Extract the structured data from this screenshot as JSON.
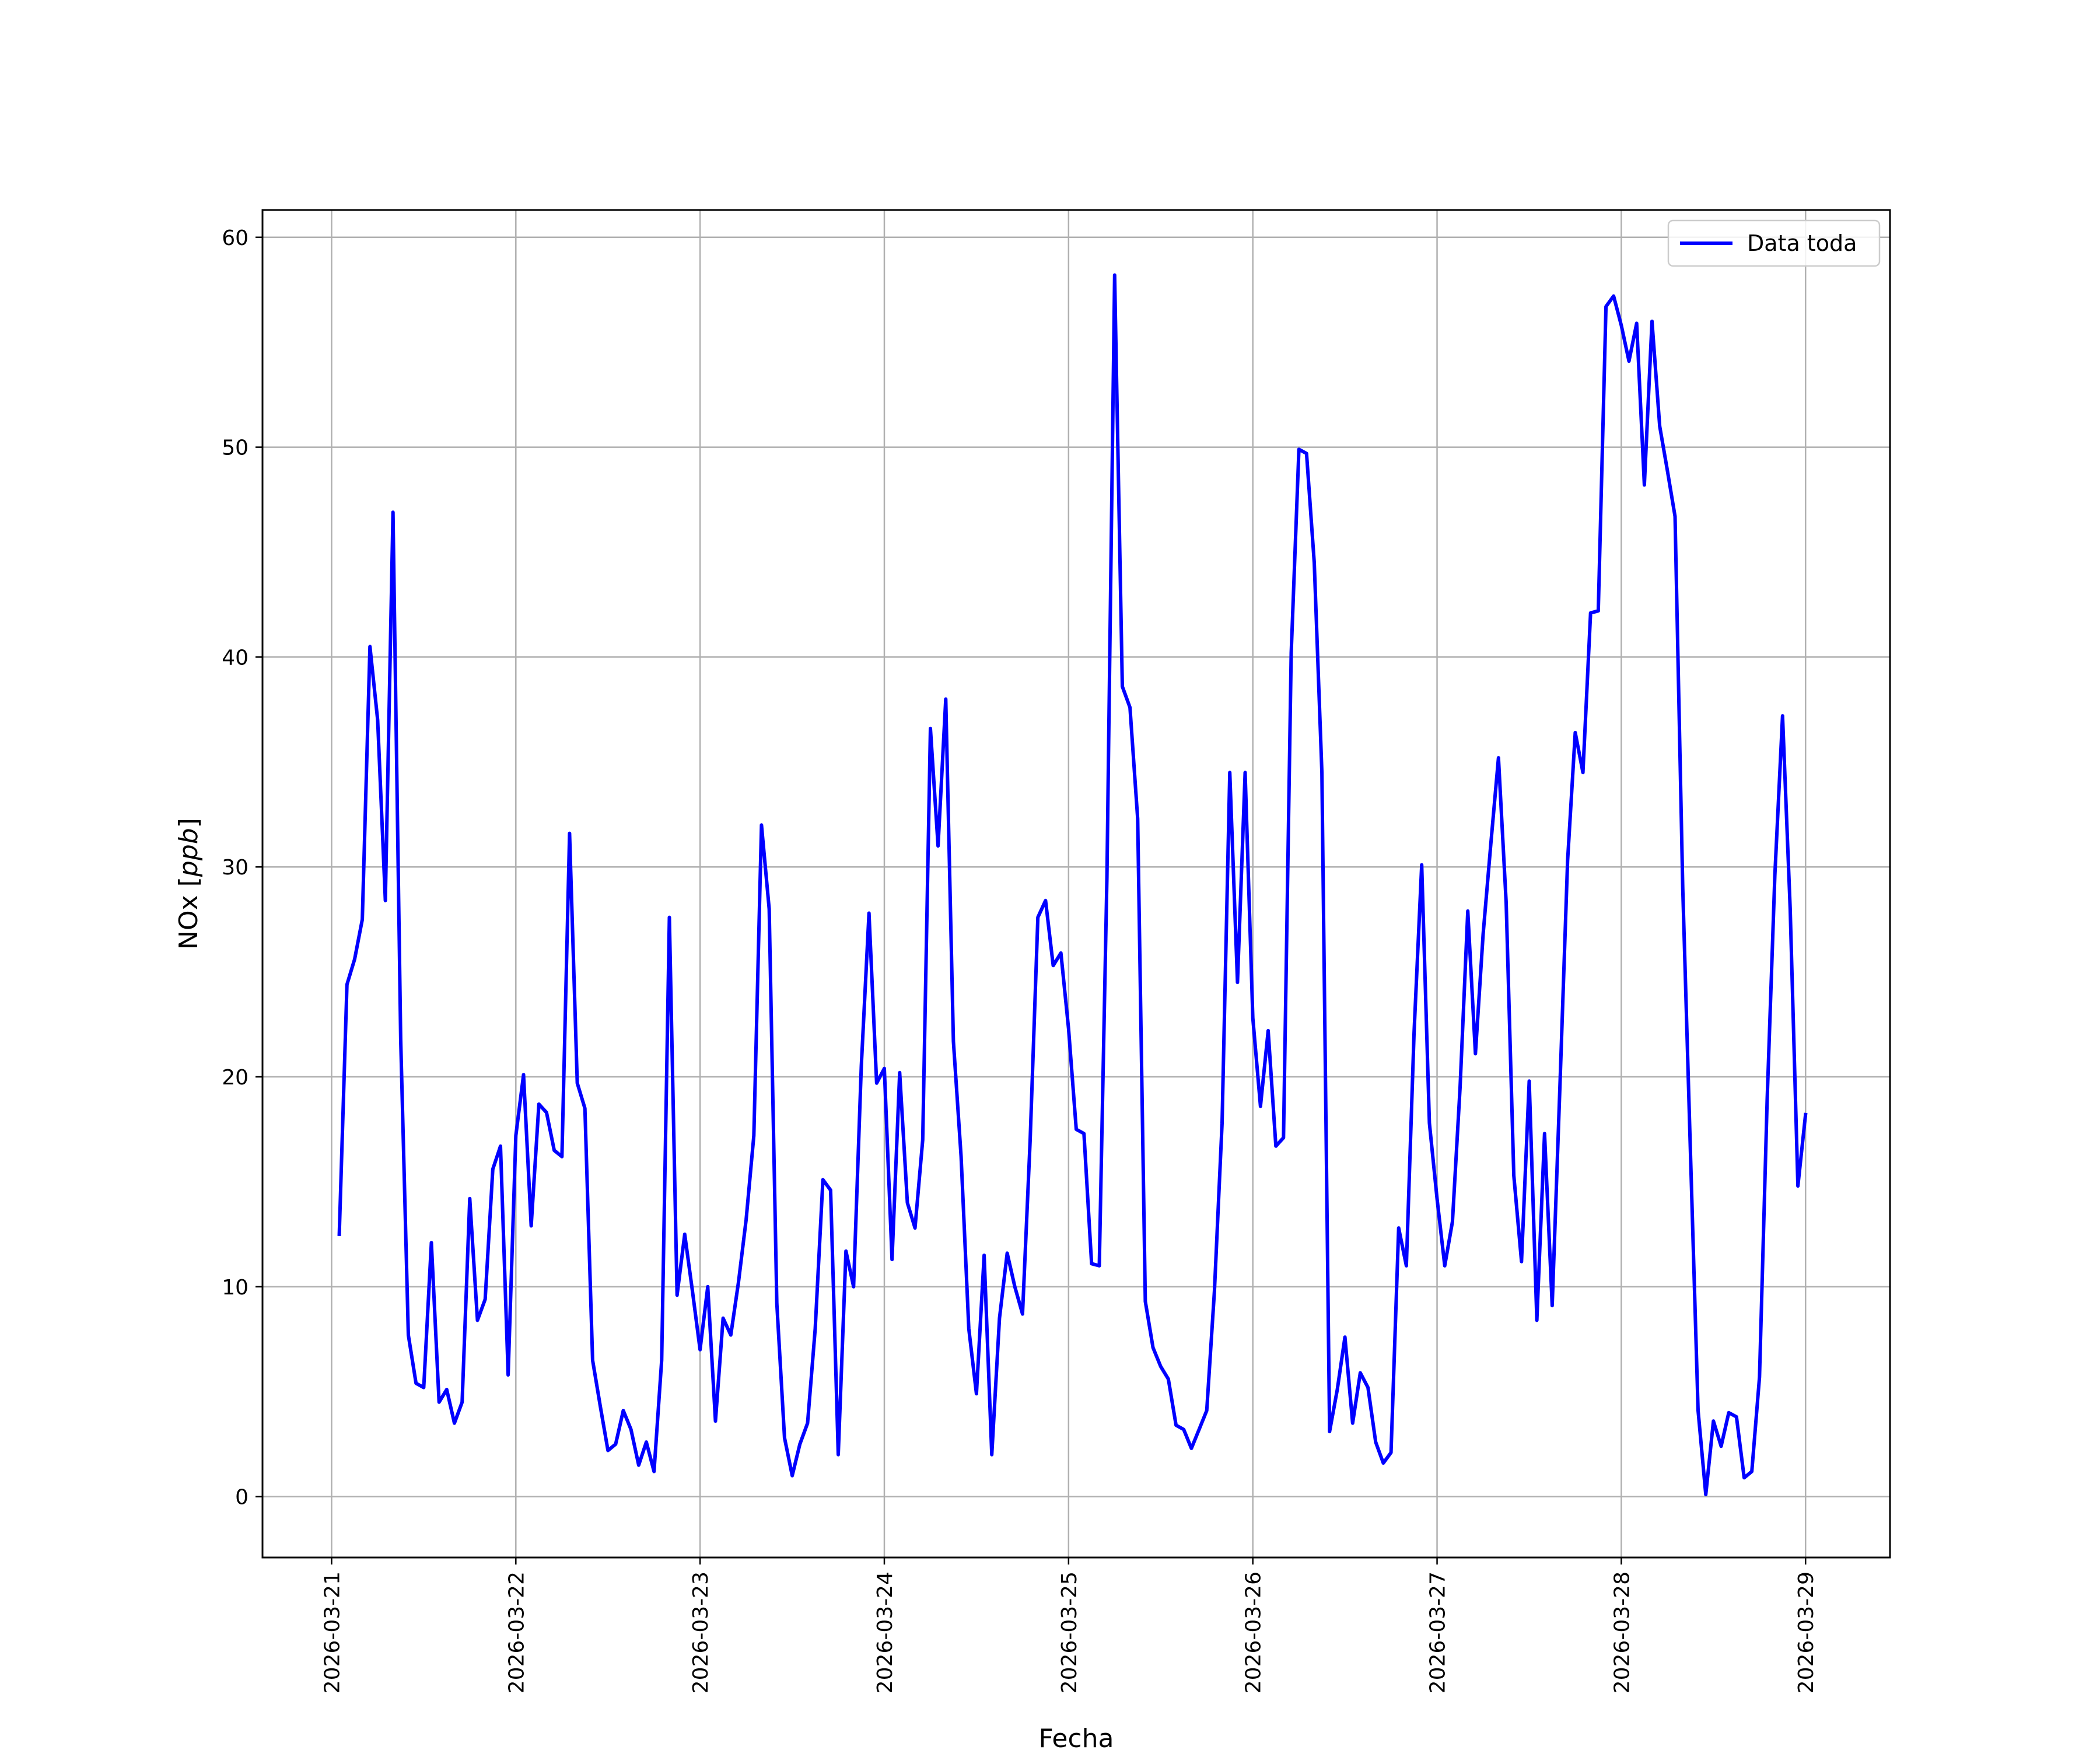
{
  "chart_data": {
    "type": "line",
    "xlabel": "Fecha",
    "ylabel_prefix": "NOx [",
    "ylabel_unit": "ppb",
    "ylabel_suffix": "]",
    "ylim": [
      -2.9,
      61.3
    ],
    "xlim": [
      "2026-03-20 15:00",
      "2026-03-29 11:00"
    ],
    "x_ticks": [
      "2026-03-21",
      "2026-03-22",
      "2026-03-23",
      "2026-03-24",
      "2026-03-25",
      "2026-03-26",
      "2026-03-27",
      "2026-03-28",
      "2026-03-29"
    ],
    "y_ticks": [
      0,
      10,
      20,
      30,
      40,
      50,
      60
    ],
    "grid": true,
    "legend_position": "top-right",
    "series": [
      {
        "name": "Data toda",
        "color": "#0000ff",
        "x": [
          "2026-03-21 01:00",
          "2026-03-21 02:00",
          "2026-03-21 03:00",
          "2026-03-21 04:00",
          "2026-03-21 05:00",
          "2026-03-21 06:00",
          "2026-03-21 07:00",
          "2026-03-21 08:00",
          "2026-03-21 09:00",
          "2026-03-21 10:00",
          "2026-03-21 11:00",
          "2026-03-21 12:00",
          "2026-03-21 13:00",
          "2026-03-21 14:00",
          "2026-03-21 15:00",
          "2026-03-21 16:00",
          "2026-03-21 17:00",
          "2026-03-21 18:00",
          "2026-03-21 19:00",
          "2026-03-21 20:00",
          "2026-03-21 21:00",
          "2026-03-21 22:00",
          "2026-03-21 23:00",
          "2026-03-22 00:00",
          "2026-03-22 01:00",
          "2026-03-22 02:00",
          "2026-03-22 03:00",
          "2026-03-22 04:00",
          "2026-03-22 05:00",
          "2026-03-22 06:00",
          "2026-03-22 07:00",
          "2026-03-22 08:00",
          "2026-03-22 09:00",
          "2026-03-22 10:00",
          "2026-03-22 11:00",
          "2026-03-22 12:00",
          "2026-03-22 13:00",
          "2026-03-22 14:00",
          "2026-03-22 15:00",
          "2026-03-22 16:00",
          "2026-03-22 17:00",
          "2026-03-22 18:00",
          "2026-03-22 19:00",
          "2026-03-22 20:00",
          "2026-03-22 21:00",
          "2026-03-22 22:00",
          "2026-03-22 23:00",
          "2026-03-23 00:00",
          "2026-03-23 01:00",
          "2026-03-23 02:00",
          "2026-03-23 03:00",
          "2026-03-23 04:00",
          "2026-03-23 05:00",
          "2026-03-23 06:00",
          "2026-03-23 07:00",
          "2026-03-23 08:00",
          "2026-03-23 09:00",
          "2026-03-23 10:00",
          "2026-03-23 11:00",
          "2026-03-23 12:00",
          "2026-03-23 13:00",
          "2026-03-23 14:00",
          "2026-03-23 15:00",
          "2026-03-23 16:00",
          "2026-03-23 17:00",
          "2026-03-23 18:00",
          "2026-03-23 19:00",
          "2026-03-23 20:00",
          "2026-03-23 21:00",
          "2026-03-23 22:00",
          "2026-03-23 23:00",
          "2026-03-24 00:00",
          "2026-03-24 01:00",
          "2026-03-24 02:00",
          "2026-03-24 03:00",
          "2026-03-24 04:00",
          "2026-03-24 05:00",
          "2026-03-24 06:00",
          "2026-03-24 07:00",
          "2026-03-24 08:00",
          "2026-03-24 09:00",
          "2026-03-24 10:00",
          "2026-03-24 11:00",
          "2026-03-24 12:00",
          "2026-03-24 13:00",
          "2026-03-24 14:00",
          "2026-03-24 15:00",
          "2026-03-24 16:00",
          "2026-03-24 17:00",
          "2026-03-24 18:00",
          "2026-03-24 19:00",
          "2026-03-24 20:00",
          "2026-03-24 21:00",
          "2026-03-24 22:00",
          "2026-03-24 23:00",
          "2026-03-25 00:00",
          "2026-03-25 01:00",
          "2026-03-25 02:00",
          "2026-03-25 03:00",
          "2026-03-25 04:00",
          "2026-03-25 05:00",
          "2026-03-25 06:00",
          "2026-03-25 07:00",
          "2026-03-25 08:00",
          "2026-03-25 09:00",
          "2026-03-25 10:00",
          "2026-03-25 11:00",
          "2026-03-25 12:00",
          "2026-03-25 13:00",
          "2026-03-25 14:00",
          "2026-03-25 15:00",
          "2026-03-25 16:00",
          "2026-03-25 17:00",
          "2026-03-25 18:00",
          "2026-03-25 19:00",
          "2026-03-25 20:00",
          "2026-03-25 21:00",
          "2026-03-25 22:00",
          "2026-03-25 23:00",
          "2026-03-26 00:00",
          "2026-03-26 01:00",
          "2026-03-26 02:00",
          "2026-03-26 03:00",
          "2026-03-26 04:00",
          "2026-03-26 05:00",
          "2026-03-26 06:00",
          "2026-03-26 07:00",
          "2026-03-26 08:00",
          "2026-03-26 09:00",
          "2026-03-26 10:00",
          "2026-03-26 11:00",
          "2026-03-26 12:00",
          "2026-03-26 13:00",
          "2026-03-26 14:00",
          "2026-03-26 15:00",
          "2026-03-26 16:00",
          "2026-03-26 17:00",
          "2026-03-26 18:00",
          "2026-03-26 19:00",
          "2026-03-26 20:00",
          "2026-03-26 21:00",
          "2026-03-26 22:00",
          "2026-03-26 23:00",
          "2026-03-27 00:00",
          "2026-03-27 01:00",
          "2026-03-27 02:00",
          "2026-03-27 03:00",
          "2026-03-27 04:00",
          "2026-03-27 05:00",
          "2026-03-27 06:00",
          "2026-03-27 07:00",
          "2026-03-27 08:00",
          "2026-03-27 09:00",
          "2026-03-27 10:00",
          "2026-03-27 11:00",
          "2026-03-27 12:00",
          "2026-03-27 13:00",
          "2026-03-27 14:00",
          "2026-03-27 15:00",
          "2026-03-27 16:00",
          "2026-03-27 17:00",
          "2026-03-27 18:00",
          "2026-03-27 19:00",
          "2026-03-27 20:00",
          "2026-03-27 21:00",
          "2026-03-27 22:00",
          "2026-03-27 23:00",
          "2026-03-28 00:00",
          "2026-03-28 01:00",
          "2026-03-28 02:00",
          "2026-03-28 03:00",
          "2026-03-28 04:00",
          "2026-03-28 05:00",
          "2026-03-28 06:00",
          "2026-03-28 07:00",
          "2026-03-28 08:00",
          "2026-03-28 09:00",
          "2026-03-28 10:00",
          "2026-03-28 11:00",
          "2026-03-28 12:00",
          "2026-03-28 13:00",
          "2026-03-28 14:00",
          "2026-03-28 15:00",
          "2026-03-28 16:00",
          "2026-03-28 17:00",
          "2026-03-28 18:00",
          "2026-03-28 19:00",
          "2026-03-28 20:00",
          "2026-03-28 21:00",
          "2026-03-28 22:00",
          "2026-03-28 23:00",
          "2026-03-29 00:00"
        ],
        "y": [
          12.5,
          24.4,
          25.6,
          27.5,
          40.5,
          37.0,
          28.4,
          46.9,
          21.8,
          7.7,
          5.4,
          5.2,
          12.1,
          4.5,
          5.1,
          3.5,
          4.5,
          14.2,
          8.4,
          9.4,
          15.6,
          16.7,
          5.8,
          17.2,
          20.1,
          12.9,
          18.7,
          18.3,
          16.5,
          16.2,
          31.6,
          19.7,
          18.5,
          6.5,
          4.3,
          2.2,
          2.5,
          4.1,
          3.2,
          1.5,
          2.6,
          1.2,
          6.5,
          27.6,
          9.6,
          12.5,
          9.8,
          7.0,
          10.0,
          3.6,
          8.5,
          7.7,
          10.2,
          13.2,
          17.2,
          32.0,
          28.0,
          9.2,
          2.8,
          1.0,
          2.5,
          3.5,
          8.0,
          15.1,
          14.6,
          2.0,
          11.7,
          10.0,
          20.5,
          27.8,
          19.7,
          20.4,
          11.3,
          20.2,
          14.0,
          12.8,
          17.0,
          36.6,
          31.0,
          38.0,
          21.7,
          16.2,
          8.0,
          4.9,
          11.5,
          2.0,
          8.5,
          11.6,
          10.0,
          8.7,
          17.0,
          27.6,
          28.4,
          25.3,
          25.9,
          22.3,
          17.5,
          17.3,
          11.1,
          11.0,
          29.5,
          58.2,
          38.6,
          37.6,
          32.3,
          9.3,
          7.1,
          6.2,
          5.6,
          3.4,
          3.2,
          2.3,
          3.2,
          4.1,
          9.8,
          17.8,
          34.5,
          24.5,
          34.5,
          22.8,
          18.6,
          22.2,
          16.7,
          17.1,
          40.2,
          49.9,
          49.7,
          44.5,
          34.5,
          3.1,
          5.1,
          7.6,
          3.5,
          5.9,
          5.2,
          2.6,
          1.6,
          2.1,
          12.8,
          11.0,
          22.1,
          30.1,
          17.8,
          14.2,
          11.0,
          13.1,
          19.5,
          27.9,
          21.1,
          26.8,
          31.1,
          35.2,
          28.3,
          15.3,
          11.2,
          19.8,
          8.4,
          17.3,
          9.1,
          19.5,
          30.3,
          36.4,
          34.5,
          42.1,
          42.2,
          56.7,
          57.2,
          55.8,
          54.1,
          55.9,
          48.2,
          56.0,
          51.0,
          48.9,
          46.7,
          29.0,
          16.5,
          4.1,
          0.1,
          3.6,
          2.4,
          4.0,
          3.8,
          0.9,
          1.2,
          5.7,
          18.9,
          29.6,
          37.2,
          28.0,
          14.8,
          18.2
        ]
      }
    ]
  }
}
